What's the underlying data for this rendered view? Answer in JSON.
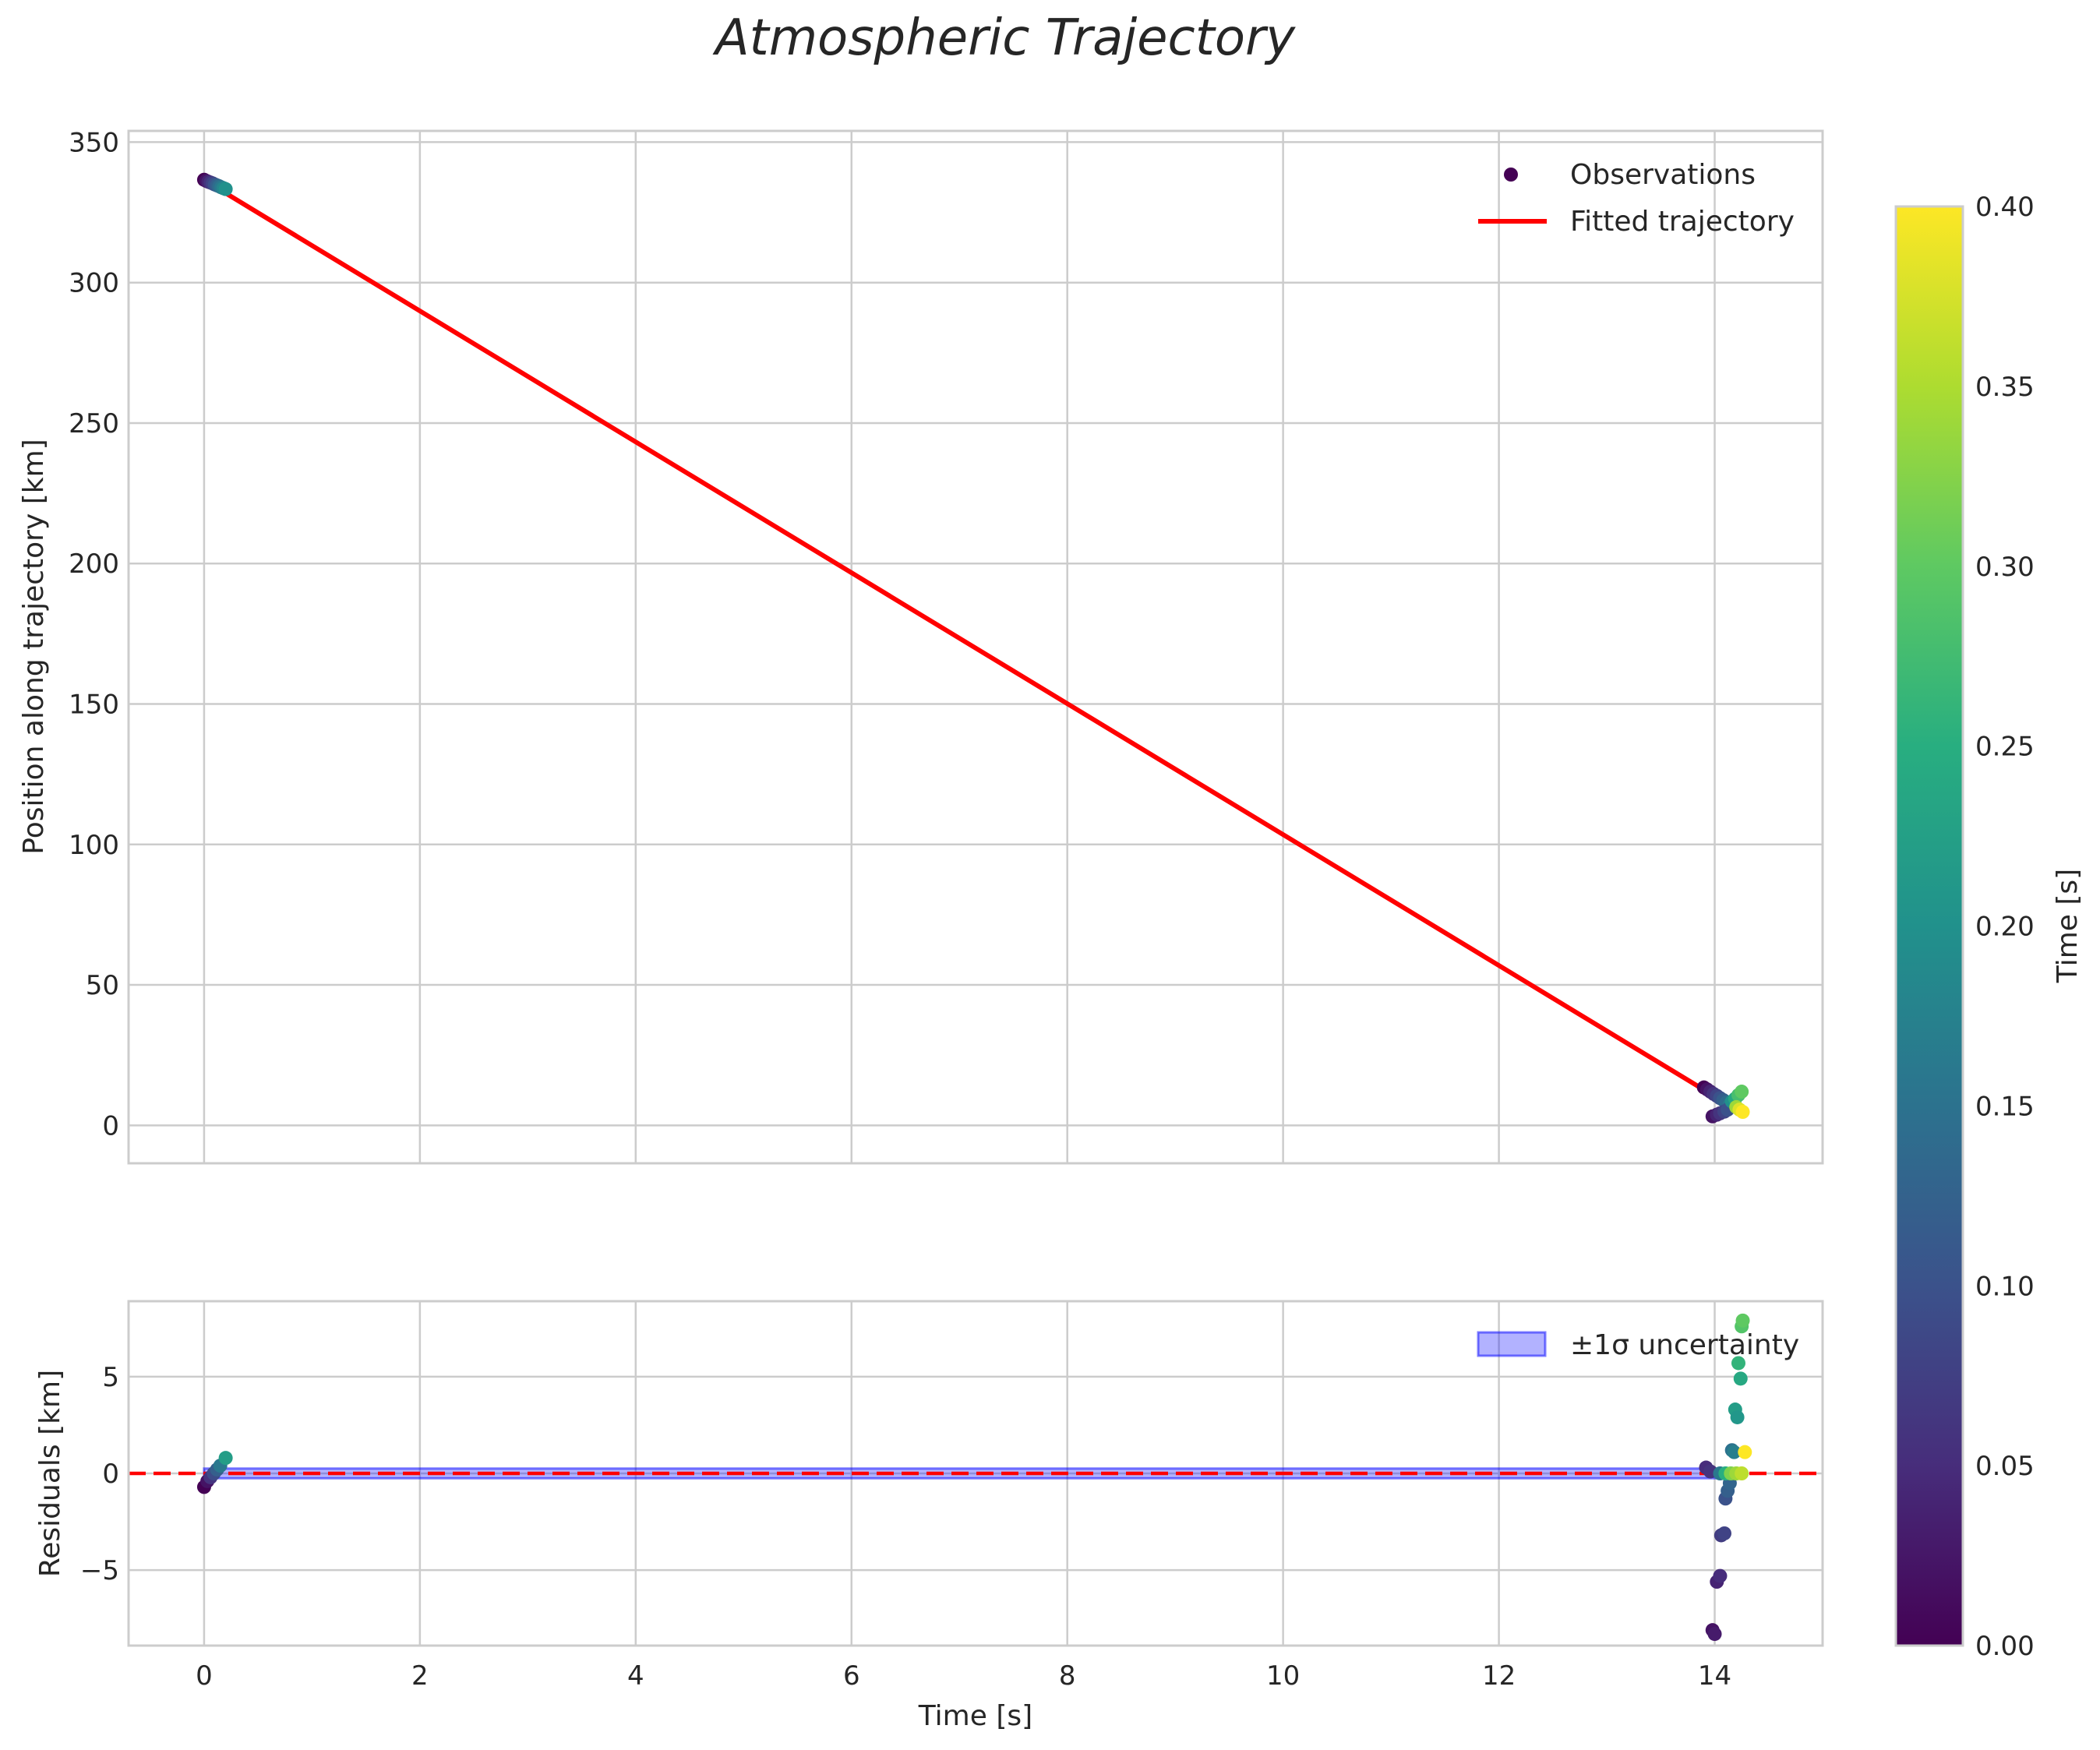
{
  "chart_data": [
    {
      "type": "scatter",
      "panel": "trajectory",
      "title": "Atmospheric Trajectory",
      "xlabel": "",
      "ylabel": "Position along trajectory [km]",
      "xlim": [
        -0.7,
        15.0
      ],
      "ylim": [
        -13.5,
        354
      ],
      "xticks": [
        0,
        2,
        4,
        6,
        8,
        10,
        12,
        14
      ],
      "yticks": [
        0,
        50,
        100,
        150,
        200,
        250,
        300,
        350
      ],
      "grid": true,
      "legend": {
        "placement": "top-right",
        "entries": [
          "Observations",
          "Fitted trajectory"
        ]
      },
      "fitted_trajectory": {
        "name": "Fitted trajectory",
        "color": "#ff0000",
        "x": [
          0.0,
          14.25
        ],
        "y": [
          336.5,
          4.5
        ]
      },
      "observations": {
        "name": "Observations",
        "colormap": "viridis",
        "color_variable": "Time [s] (0.00 to 0.40)",
        "points": [
          {
            "x": 0.0,
            "y": 336.6,
            "c": 0.0
          },
          {
            "x": 0.02,
            "y": 336.2,
            "c": 0.02
          },
          {
            "x": 0.04,
            "y": 335.9,
            "c": 0.04
          },
          {
            "x": 0.06,
            "y": 335.6,
            "c": 0.06
          },
          {
            "x": 0.08,
            "y": 335.3,
            "c": 0.08
          },
          {
            "x": 0.1,
            "y": 334.9,
            "c": 0.1
          },
          {
            "x": 0.12,
            "y": 334.6,
            "c": 0.12
          },
          {
            "x": 0.14,
            "y": 334.3,
            "c": 0.14
          },
          {
            "x": 0.16,
            "y": 333.9,
            "c": 0.16
          },
          {
            "x": 0.18,
            "y": 333.6,
            "c": 0.18
          },
          {
            "x": 0.2,
            "y": 333.3,
            "c": 0.2
          },
          {
            "x": 13.9,
            "y": 13.5,
            "c": 0.0
          },
          {
            "x": 13.93,
            "y": 12.8,
            "c": 0.02
          },
          {
            "x": 13.96,
            "y": 12.0,
            "c": 0.04
          },
          {
            "x": 13.99,
            "y": 11.2,
            "c": 0.06
          },
          {
            "x": 14.02,
            "y": 10.5,
            "c": 0.08
          },
          {
            "x": 14.05,
            "y": 9.7,
            "c": 0.1
          },
          {
            "x": 14.08,
            "y": 9.0,
            "c": 0.12
          },
          {
            "x": 14.11,
            "y": 8.2,
            "c": 0.14
          },
          {
            "x": 14.14,
            "y": 7.5,
            "c": 0.16
          },
          {
            "x": 13.98,
            "y": 3.2,
            "c": 0.02
          },
          {
            "x": 14.02,
            "y": 3.8,
            "c": 0.04
          },
          {
            "x": 14.05,
            "y": 4.3,
            "c": 0.06
          },
          {
            "x": 14.09,
            "y": 4.9,
            "c": 0.08
          },
          {
            "x": 14.12,
            "y": 5.6,
            "c": 0.1
          },
          {
            "x": 14.16,
            "y": 8.5,
            "c": 0.2
          },
          {
            "x": 14.19,
            "y": 9.5,
            "c": 0.24
          },
          {
            "x": 14.22,
            "y": 10.8,
            "c": 0.28
          },
          {
            "x": 14.25,
            "y": 12.0,
            "c": 0.3
          },
          {
            "x": 14.2,
            "y": 6.5,
            "c": 0.34
          },
          {
            "x": 14.23,
            "y": 5.6,
            "c": 0.38
          },
          {
            "x": 14.26,
            "y": 4.8,
            "c": 0.4
          }
        ]
      }
    },
    {
      "type": "scatter",
      "panel": "residuals",
      "title": "",
      "xlabel": "Time [s]",
      "ylabel": "Residuals [km]",
      "xlim": [
        -0.7,
        15.0
      ],
      "ylim": [
        -8.9,
        8.9
      ],
      "xticks": [
        0,
        2,
        4,
        6,
        8,
        10,
        12,
        14
      ],
      "yticks": [
        -5,
        0,
        5
      ],
      "grid": true,
      "legend": {
        "placement": "top-right",
        "entries": [
          "±1σ uncertainty"
        ]
      },
      "zero_line": {
        "y": 0,
        "color": "#ff0000",
        "style": "dashed"
      },
      "uncertainty_band": {
        "name": "±1σ uncertainty",
        "color": "#0000ff",
        "x": [
          0.0,
          14.25
        ],
        "lower": [
          -0.25,
          -0.25
        ],
        "upper": [
          0.25,
          0.25
        ]
      },
      "residuals": {
        "colormap": "viridis",
        "points": [
          {
            "x": 0.0,
            "y": -0.7,
            "c": 0.0
          },
          {
            "x": 0.03,
            "y": -0.4,
            "c": 0.02
          },
          {
            "x": 0.06,
            "y": -0.2,
            "c": 0.06
          },
          {
            "x": 0.09,
            "y": 0.0,
            "c": 0.09
          },
          {
            "x": 0.12,
            "y": 0.2,
            "c": 0.12
          },
          {
            "x": 0.15,
            "y": 0.4,
            "c": 0.16
          },
          {
            "x": 0.2,
            "y": 0.8,
            "c": 0.22
          },
          {
            "x": 13.92,
            "y": 0.3,
            "c": 0.05
          },
          {
            "x": 13.96,
            "y": 0.1,
            "c": 0.06
          },
          {
            "x": 13.98,
            "y": -8.1,
            "c": 0.02
          },
          {
            "x": 14.0,
            "y": -8.3,
            "c": 0.03
          },
          {
            "x": 14.02,
            "y": -5.6,
            "c": 0.04
          },
          {
            "x": 14.05,
            "y": -5.3,
            "c": 0.05
          },
          {
            "x": 14.06,
            "y": -3.2,
            "c": 0.07
          },
          {
            "x": 14.09,
            "y": -3.1,
            "c": 0.08
          },
          {
            "x": 14.1,
            "y": -1.3,
            "c": 0.1
          },
          {
            "x": 14.12,
            "y": -0.9,
            "c": 0.12
          },
          {
            "x": 14.14,
            "y": -0.5,
            "c": 0.13
          },
          {
            "x": 14.16,
            "y": 1.2,
            "c": 0.15
          },
          {
            "x": 14.18,
            "y": 1.1,
            "c": 0.17
          },
          {
            "x": 14.19,
            "y": 3.3,
            "c": 0.22
          },
          {
            "x": 14.21,
            "y": 2.9,
            "c": 0.21
          },
          {
            "x": 14.22,
            "y": 5.7,
            "c": 0.26
          },
          {
            "x": 14.24,
            "y": 4.9,
            "c": 0.24
          },
          {
            "x": 14.25,
            "y": 7.6,
            "c": 0.29
          },
          {
            "x": 14.26,
            "y": 7.9,
            "c": 0.3
          },
          {
            "x": 14.05,
            "y": 0.0,
            "c": 0.16
          },
          {
            "x": 14.1,
            "y": 0.0,
            "c": 0.25
          },
          {
            "x": 14.15,
            "y": 0.0,
            "c": 0.32
          },
          {
            "x": 14.2,
            "y": 0.0,
            "c": 0.34
          },
          {
            "x": 14.25,
            "y": 0.0,
            "c": 0.36
          },
          {
            "x": 14.28,
            "y": 1.1,
            "c": 0.4
          }
        ]
      }
    }
  ],
  "colorbar": {
    "label": "Time [s]",
    "colormap": "viridis",
    "min": 0.0,
    "max": 0.4,
    "tick_values": [
      0.0,
      0.05,
      0.1,
      0.15,
      0.2,
      0.25,
      0.3,
      0.35,
      0.4
    ],
    "tick_labels": [
      "0.00",
      "0.05",
      "0.10",
      "0.15",
      "0.20",
      "0.25",
      "0.30",
      "0.35",
      "0.40"
    ]
  },
  "colors": {
    "fit_line": "#ff0000",
    "zero_line": "#ff0000",
    "band_fill": "#0000ff",
    "grid": "#cccccc",
    "text": "#262626"
  }
}
